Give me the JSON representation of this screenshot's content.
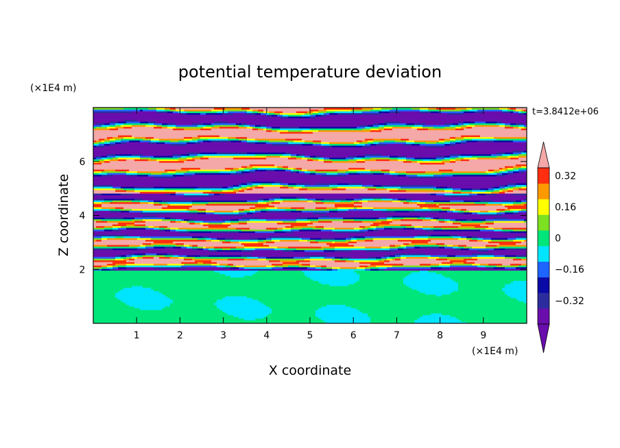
{
  "chart_data": {
    "type": "heatmap",
    "title": "potential temperature deviation",
    "xlabel": "X coordinate",
    "ylabel": "Z coordinate",
    "x_unit": "(×1E4 m)",
    "y_unit": "(×1E4 m)",
    "time_label": "t=3.8412e+06",
    "xlim": [
      0,
      10
    ],
    "ylim": [
      0,
      8
    ],
    "x_ticks": [
      1,
      2,
      3,
      4,
      5,
      6,
      7,
      8,
      9
    ],
    "y_ticks": [
      2,
      4,
      6
    ],
    "colorbar": {
      "levels": [
        -0.4,
        -0.32,
        -0.24,
        -0.16,
        -0.08,
        0,
        0.08,
        0.16,
        0.24,
        0.32,
        0.4
      ],
      "labels": [
        {
          "value": 0.32,
          "text": "0.32"
        },
        {
          "value": 0.16,
          "text": "0.16"
        },
        {
          "value": 0,
          "text": "0"
        },
        {
          "value": -0.16,
          "text": "−0.16"
        },
        {
          "value": -0.32,
          "text": "−0.32"
        }
      ],
      "colors": [
        "#6a0dad",
        "#2c2c9e",
        "#0a0aa6",
        "#1e64ff",
        "#00e5ff",
        "#00e67a",
        "#7de020",
        "#ffff00",
        "#ff9900",
        "#ff2e10",
        "#f4a8a8"
      ],
      "under_color": "#6a0dad",
      "over_color": "#f4a8a8"
    }
  }
}
